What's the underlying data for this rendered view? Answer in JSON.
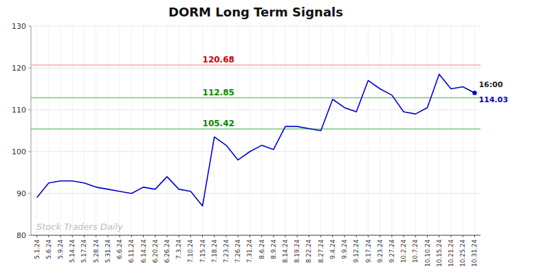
{
  "chart_data": {
    "type": "line",
    "title": "DORM Long Term Signals",
    "categories": [
      "5.1.24",
      "5.6.24",
      "5.9.24",
      "5.14.24",
      "5.17.24",
      "5.28.24",
      "5.31.24",
      "6.6.24",
      "6.11.24",
      "6.14.24",
      "6.20.24",
      "6.26.24",
      "7.3.24",
      "7.10.24",
      "7.15.24",
      "7.18.24",
      "7.23.24",
      "7.26.24",
      "7.31.24",
      "8.6.24",
      "8.9.24",
      "8.14.24",
      "8.19.24",
      "8.22.24",
      "8.27.24",
      "9.4.24",
      "9.9.24",
      "9.12.24",
      "9.17.24",
      "9.23.24",
      "9.27.24",
      "10.2.24",
      "10.7.24",
      "10.10.24",
      "10.15.24",
      "10.21.24",
      "10.25.24",
      "10.31.24"
    ],
    "values": [
      89.0,
      92.5,
      93.0,
      93.0,
      92.5,
      91.5,
      91.0,
      90.5,
      90.0,
      91.5,
      91.0,
      94.0,
      91.0,
      90.5,
      87.0,
      103.5,
      101.5,
      98.0,
      100.0,
      101.5,
      100.5,
      106.0,
      106.0,
      105.5,
      105.0,
      112.5,
      110.5,
      109.5,
      117.0,
      115.0,
      113.5,
      109.5,
      109.0,
      110.5,
      118.5,
      115.0,
      115.5,
      114.03
    ],
    "color": "#0000cc",
    "ylim": [
      80,
      130
    ],
    "yticks": [
      80,
      90,
      100,
      110,
      120,
      130
    ],
    "grid": true,
    "annotations": [
      {
        "y": 120.68,
        "label": "120.68",
        "x": "7.15.24",
        "color": "#ffaaaa",
        "text_color": "#cc0000"
      },
      {
        "y": 112.85,
        "label": "112.85",
        "x": "7.15.24",
        "color": "#77cc77",
        "text_color": "#008800"
      },
      {
        "y": 105.42,
        "label": "105.42",
        "x": "7.15.24",
        "color": "#77cc77",
        "text_color": "#008800"
      }
    ],
    "point_labels": [
      {
        "text": "16:00"
      },
      {
        "text": "114.03",
        "value": 114.03,
        "color": "#0000cc"
      }
    ],
    "watermark": {
      "text": "Stock Traders Daily",
      "color": "#bbbbbb"
    }
  }
}
